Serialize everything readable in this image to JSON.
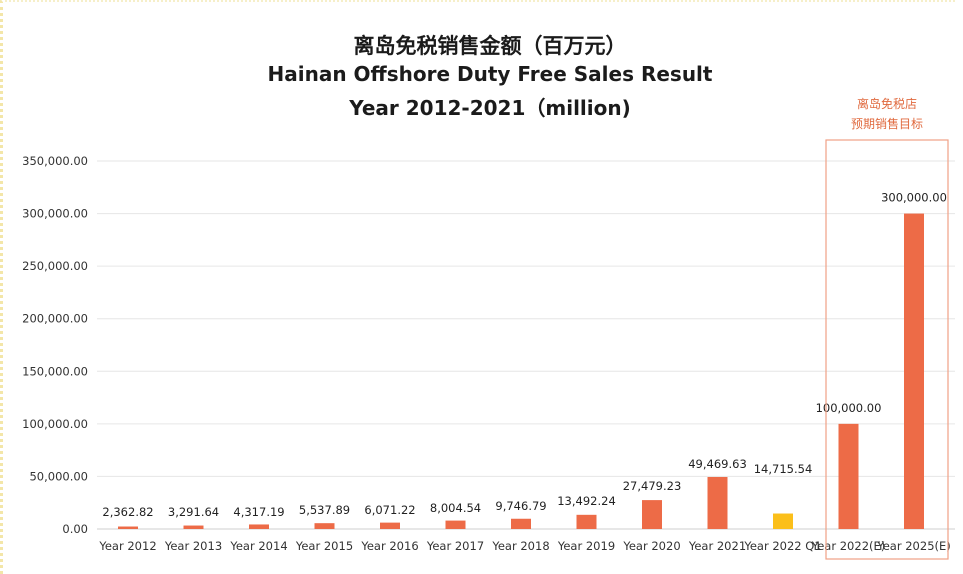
{
  "chart_data": {
    "type": "bar",
    "title_lines": [
      "离岛免税销售金额（百万元）",
      "Hainan Offshore Duty Free Sales Result",
      "Year 2012-2021（million)"
    ],
    "categories": [
      "Year 2012",
      "Year 2013",
      "Year 2014",
      "Year 2015",
      "Year 2016",
      "Year 2017",
      "Year 2018",
      "Year 2019",
      "Year 2020",
      "Year 2021",
      "Year 2022 Q1",
      "Year 2022(E)",
      "Year 2025(E)"
    ],
    "values": [
      2362.82,
      3291.64,
      4317.19,
      5537.89,
      6071.22,
      8004.54,
      9746.79,
      13492.24,
      27479.23,
      49469.63,
      14715.54,
      100000.0,
      300000.0
    ],
    "value_labels": [
      "2,362.82",
      "3,291.64",
      "4,317.19",
      "5,537.89",
      "6,071.22",
      "8,004.54",
      "9,746.79",
      "13,492.24",
      "27,479.23",
      "49,469.63",
      "14,715.54",
      "100,000.00",
      "300,000.00"
    ],
    "bar_colors": [
      "#ed6b47",
      "#ed6b47",
      "#ed6b47",
      "#ed6b47",
      "#ed6b47",
      "#ed6b47",
      "#ed6b47",
      "#ed6b47",
      "#ed6b47",
      "#ed6b47",
      "#fbbf1a",
      "#ed6b47",
      "#ed6b47"
    ],
    "ylim": [
      0,
      350000
    ],
    "yticks": [
      0,
      50000,
      100000,
      150000,
      200000,
      250000,
      300000,
      350000
    ],
    "ytick_labels": [
      "0.00",
      "50,000.00",
      "100,000.00",
      "150,000.00",
      "200,000.00",
      "250,000.00",
      "300,000.00",
      "350,000.00"
    ],
    "grid": true,
    "annotation": {
      "lines": [
        "离岛免税店",
        "预期销售目标"
      ],
      "color": "#e06a3f",
      "covers_categories": [
        "Year 2022(E)",
        "Year 2025(E)"
      ]
    }
  }
}
